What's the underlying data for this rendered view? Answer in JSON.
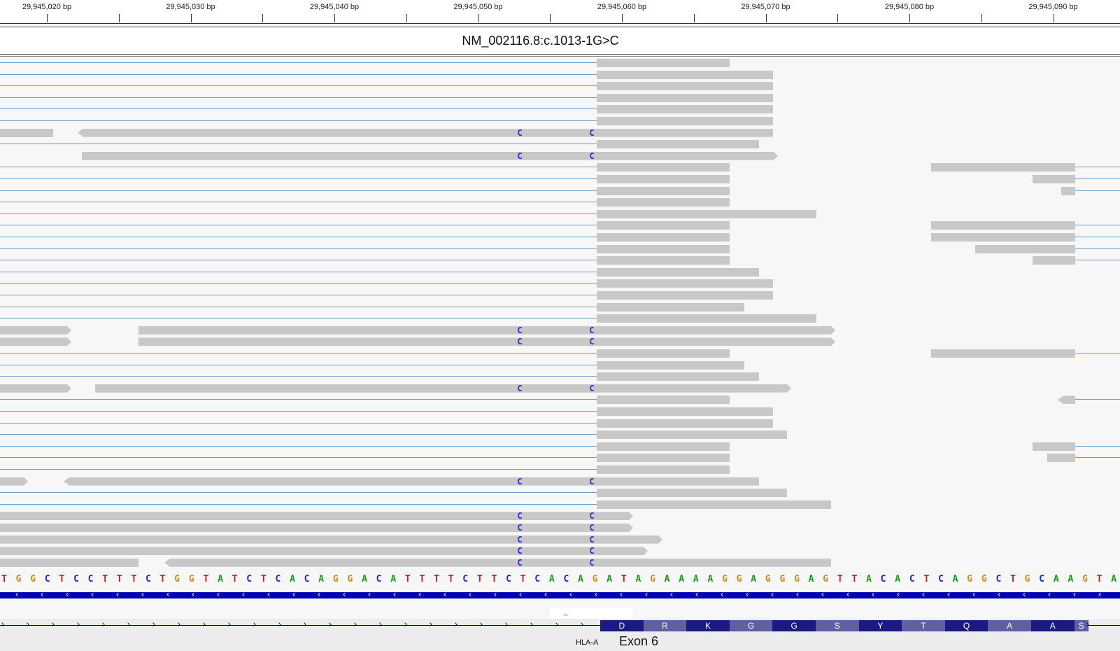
{
  "ruler": {
    "labels": [
      "29,945,020 bp",
      "29,945,030 bp",
      "29,945,040 bp",
      "29,945,050 bp",
      "29,945,060 bp",
      "29,945,070 bp",
      "29,945,080 bp",
      "29,945,090 bp"
    ]
  },
  "variant": {
    "label": "NM_002116.8:c.1013-1G>C"
  },
  "alignment": {
    "read_color": "#c8c8c8",
    "junction_color": "#6f9bc6",
    "mismatch_base": "C",
    "mismatch_color": "#2a2ad0"
  },
  "reference": {
    "sequence": "TGGCTCCTTTCTGGTATCTCACAGGACATTTTCTTCTCACAGATAGAAAAGGAGGGAGTTACACTCAGGCTGCAAGTA",
    "base_colors": {
      "A": "#1a9a1a",
      "C": "#2323c8",
      "G": "#d28c14",
      "T": "#d01a1a"
    }
  },
  "gene": {
    "name": "HLA-A",
    "exon_label": "Exon 6",
    "strand_color": "#0000b0",
    "codons": [
      "D",
      "R",
      "K",
      "G",
      "G",
      "S",
      "Y",
      "T",
      "Q",
      "A",
      "A",
      "S"
    ],
    "codon_colors": [
      "#1a1a80",
      "#6060a0"
    ]
  }
}
